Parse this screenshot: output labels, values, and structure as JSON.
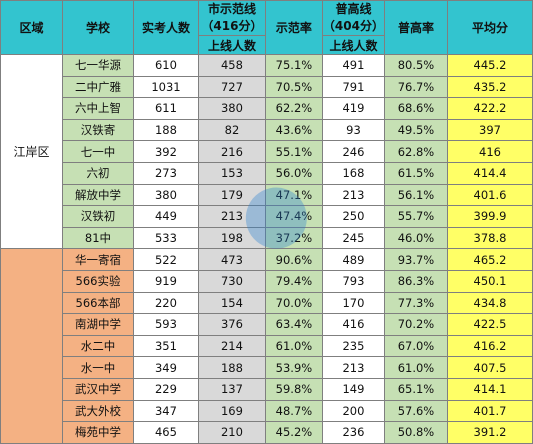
{
  "headers": {
    "region": "区域",
    "school": "学校",
    "exam_count": "实考人数",
    "city_line_top1": "市示范线",
    "city_line_top2": "（416分）",
    "city_line_sub": "上线人数",
    "city_rate": "示范率",
    "gen_line_top1": "普高线",
    "gen_line_top2": "（404分）",
    "gen_line_sub": "上线人数",
    "gen_rate": "普高率",
    "avg": "平均分"
  },
  "groups": [
    {
      "region": "江岸区",
      "rows": [
        {
          "school": "七一华源",
          "exam": "610",
          "city": "458",
          "city_rate": "75.1%",
          "gen": "491",
          "gen_rate": "80.5%",
          "avg": "445.2"
        },
        {
          "school": "二中广雅",
          "exam": "1031",
          "city": "727",
          "city_rate": "70.5%",
          "gen": "791",
          "gen_rate": "76.7%",
          "avg": "435.2"
        },
        {
          "school": "六中上智",
          "exam": "611",
          "city": "380",
          "city_rate": "62.2%",
          "gen": "419",
          "gen_rate": "68.6%",
          "avg": "422.2"
        },
        {
          "school": "汉铁寄",
          "exam": "188",
          "city": "82",
          "city_rate": "43.6%",
          "gen": "93",
          "gen_rate": "49.5%",
          "avg": "397"
        },
        {
          "school": "七一中",
          "exam": "392",
          "city": "216",
          "city_rate": "55.1%",
          "gen": "246",
          "gen_rate": "62.8%",
          "avg": "416"
        },
        {
          "school": "六初",
          "exam": "273",
          "city": "153",
          "city_rate": "56.0%",
          "gen": "168",
          "gen_rate": "61.5%",
          "avg": "414.4"
        },
        {
          "school": "解放中学",
          "exam": "380",
          "city": "179",
          "city_rate": "47.1%",
          "gen": "213",
          "gen_rate": "56.1%",
          "avg": "401.6"
        },
        {
          "school": "汉铁初",
          "exam": "449",
          "city": "213",
          "city_rate": "47.4%",
          "gen": "250",
          "gen_rate": "55.7%",
          "avg": "399.9"
        },
        {
          "school": "81中",
          "exam": "533",
          "city": "198",
          "city_rate": "37.2%",
          "gen": "245",
          "gen_rate": "46.0%",
          "avg": "378.8"
        }
      ]
    },
    {
      "region": "",
      "rows": [
        {
          "school": "华一寄宿",
          "exam": "522",
          "city": "473",
          "city_rate": "90.6%",
          "gen": "489",
          "gen_rate": "93.7%",
          "avg": "465.2"
        },
        {
          "school": "566实验",
          "exam": "919",
          "city": "730",
          "city_rate": "79.4%",
          "gen": "793",
          "gen_rate": "86.3%",
          "avg": "450.1"
        },
        {
          "school": "566本部",
          "exam": "220",
          "city": "154",
          "city_rate": "70.0%",
          "gen": "170",
          "gen_rate": "77.3%",
          "avg": "434.8"
        },
        {
          "school": "南湖中学",
          "exam": "593",
          "city": "376",
          "city_rate": "63.4%",
          "gen": "416",
          "gen_rate": "70.2%",
          "avg": "422.5"
        },
        {
          "school": "水二中",
          "exam": "351",
          "city": "214",
          "city_rate": "61.0%",
          "gen": "235",
          "gen_rate": "67.0%",
          "avg": "416.2"
        },
        {
          "school": "水一中",
          "exam": "349",
          "city": "188",
          "city_rate": "53.9%",
          "gen": "213",
          "gen_rate": "61.0%",
          "avg": "407.5"
        },
        {
          "school": "武汉中学",
          "exam": "229",
          "city": "137",
          "city_rate": "59.8%",
          "gen": "149",
          "gen_rate": "65.1%",
          "avg": "414.1"
        },
        {
          "school": "武大外校",
          "exam": "347",
          "city": "169",
          "city_rate": "48.7%",
          "gen": "200",
          "gen_rate": "57.6%",
          "avg": "401.7"
        },
        {
          "school": "梅苑中学",
          "exam": "465",
          "city": "210",
          "city_rate": "45.2%",
          "gen": "236",
          "gen_rate": "50.8%",
          "avg": "391.2"
        }
      ]
    }
  ]
}
